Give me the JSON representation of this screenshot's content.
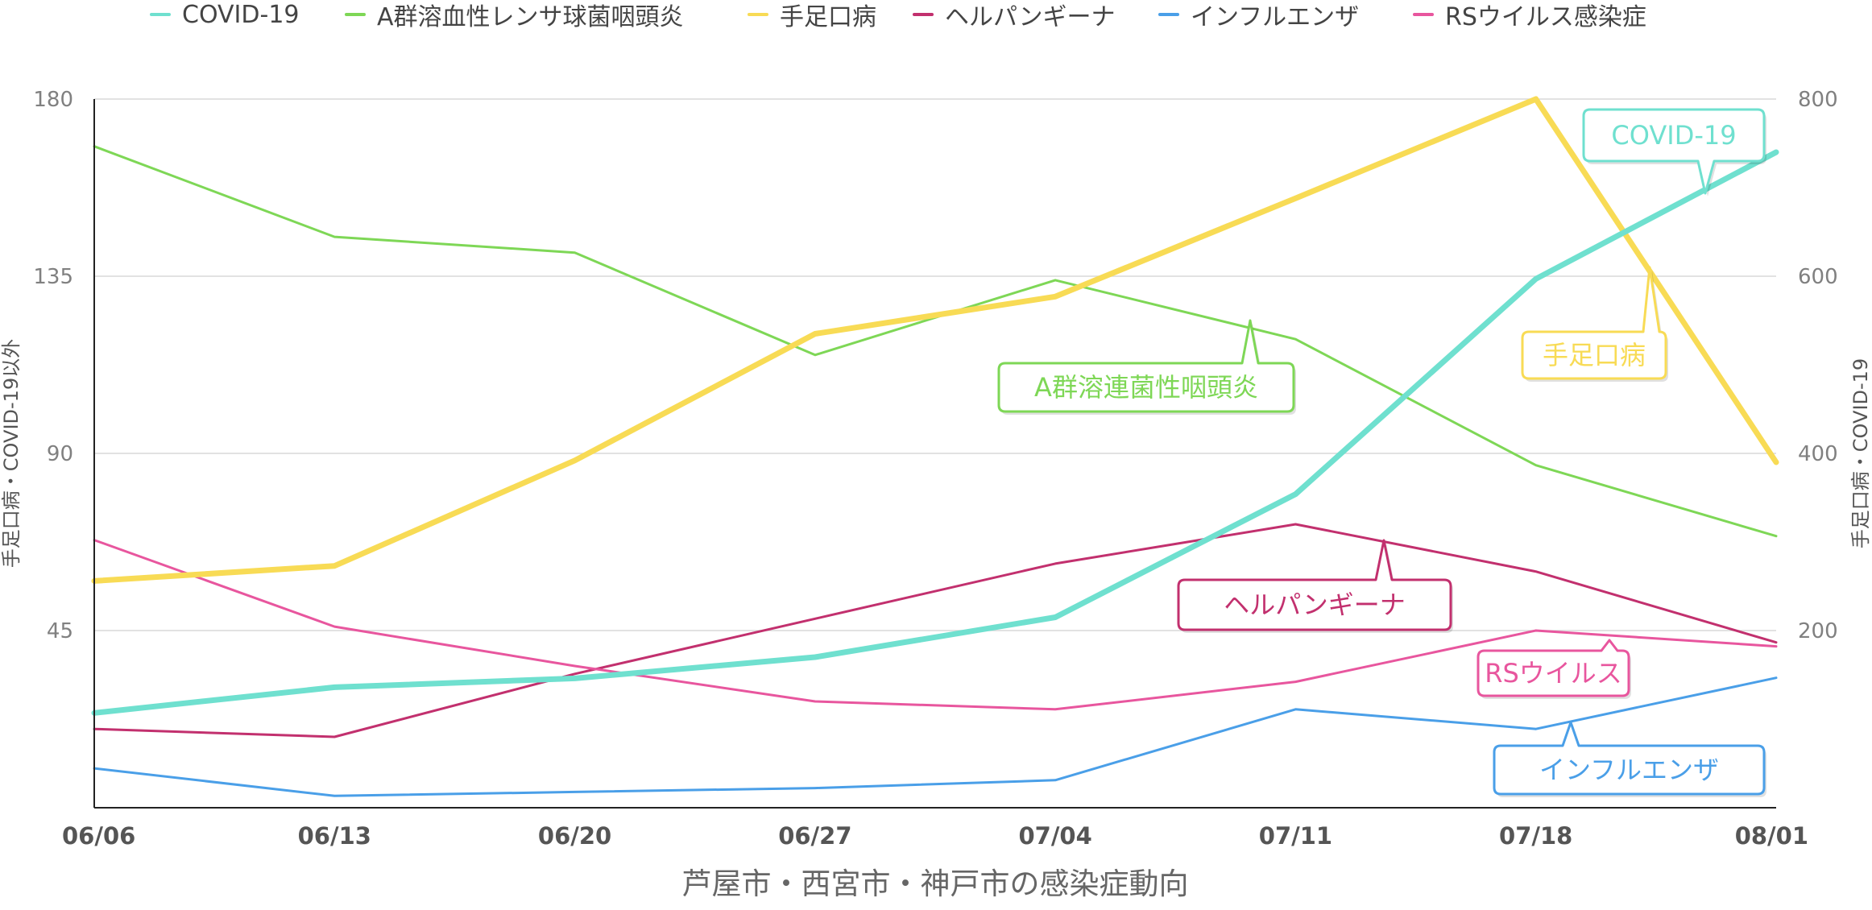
{
  "chart_data": {
    "type": "line",
    "title": "芦屋市・西宮市・神戸市の感染症動向",
    "x": [
      "06/06",
      "06/13",
      "06/20",
      "06/27",
      "07/04",
      "07/11",
      "07/18",
      "08/01"
    ],
    "y_left": {
      "label": "手足口病・COVID-19以外",
      "ticks": [
        45,
        90,
        135,
        180
      ],
      "range": [
        0,
        180
      ]
    },
    "y_right": {
      "label": "手足口病・COVID-19",
      "ticks": [
        200,
        400,
        600,
        800
      ],
      "range": [
        0,
        800
      ]
    },
    "grid": true,
    "legend_position": "top",
    "series": [
      {
        "name": "COVID-19",
        "axis": "right",
        "color": "#6FE0CF",
        "width": 7,
        "values": [
          107,
          136,
          146,
          170,
          215,
          354,
          597,
          740
        ]
      },
      {
        "name": "A群溶血性レンサ球菌咽頭炎",
        "axis": "left",
        "color": "#7ED756",
        "width": 3,
        "values": [
          168,
          145,
          141,
          115,
          134,
          119,
          87,
          69
        ]
      },
      {
        "name": "手足口病",
        "axis": "right",
        "color": "#F8DB55",
        "width": 7,
        "values": [
          256,
          273,
          392,
          535,
          577,
          688,
          800,
          390
        ]
      },
      {
        "name": "ヘルパンギーナ",
        "axis": "left",
        "color": "#C2306E",
        "width": 3,
        "values": [
          20,
          18,
          34,
          48,
          62,
          72,
          60,
          42
        ]
      },
      {
        "name": "インフルエンザ",
        "axis": "left",
        "color": "#4A9FE8",
        "width": 3,
        "values": [
          10,
          3,
          4,
          5,
          7,
          25,
          20,
          33
        ]
      },
      {
        "name": "RSウイルス感染症",
        "axis": "left",
        "color": "#E8569E",
        "width": 3,
        "values": [
          68,
          46,
          36,
          27,
          25,
          32,
          45,
          41
        ]
      }
    ],
    "annotations": [
      {
        "text": "COVID-19",
        "color": "#6FE0CF"
      },
      {
        "text": "手足口病",
        "color": "#F8DB55"
      },
      {
        "text": "A群溶連菌性咽頭炎",
        "color": "#7ED756"
      },
      {
        "text": "ヘルパンギーナ",
        "color": "#C2306E"
      },
      {
        "text": "RSウイルス",
        "color": "#E8569E"
      },
      {
        "text": "インフルエンザ",
        "color": "#4A9FE8"
      }
    ]
  }
}
